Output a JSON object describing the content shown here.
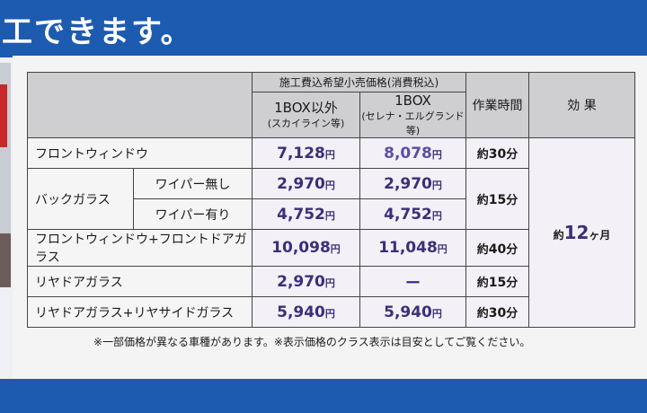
{
  "headline": "工できます。",
  "table": {
    "group_header": "施工費込希望小売価格(消費税込)",
    "col_other": {
      "line1": "1BOX以外",
      "line2": "(スカイライン等)"
    },
    "col_1box": {
      "line1": "1BOX",
      "line2": "(セレナ・エルグランド等)"
    },
    "col_time": "作業時間",
    "col_effect": "効 果",
    "rows": [
      {
        "label": "フロントウィンドウ",
        "other": "7,128",
        "box": "8,078",
        "time_pre": "約",
        "time": "30",
        "time_unit": "分"
      },
      {
        "label": "バックガラス",
        "sub": "ワイパー無し",
        "other": "2,970",
        "box": "2,970"
      },
      {
        "sub": "ワイパー有り",
        "other": "4,752",
        "box": "4,752"
      },
      {
        "label": "フロントウィンドウ+フロントドアガラス",
        "other": "10,098",
        "box": "11,048",
        "time_pre": "約",
        "time": "40",
        "time_unit": "分"
      },
      {
        "label": "リヤドアガラス",
        "other": "2,970",
        "box": "ー",
        "time_pre": "約",
        "time": "15",
        "time_unit": "分"
      },
      {
        "label": "リヤドアガラス+リヤサイドガラス",
        "other": "5,940",
        "box": "5,940",
        "time_pre": "約",
        "time": "30",
        "time_unit": "分"
      }
    ],
    "back_glass_time": {
      "pre": "約",
      "value": "15",
      "unit": "分"
    },
    "yen": "円",
    "effect": {
      "pre": "約",
      "value": "12",
      "unit": "ヶ月"
    }
  },
  "footnote": "※一部価格が異なる車種があります。※表示価格のクラス表示は目安としてご覧ください。"
}
